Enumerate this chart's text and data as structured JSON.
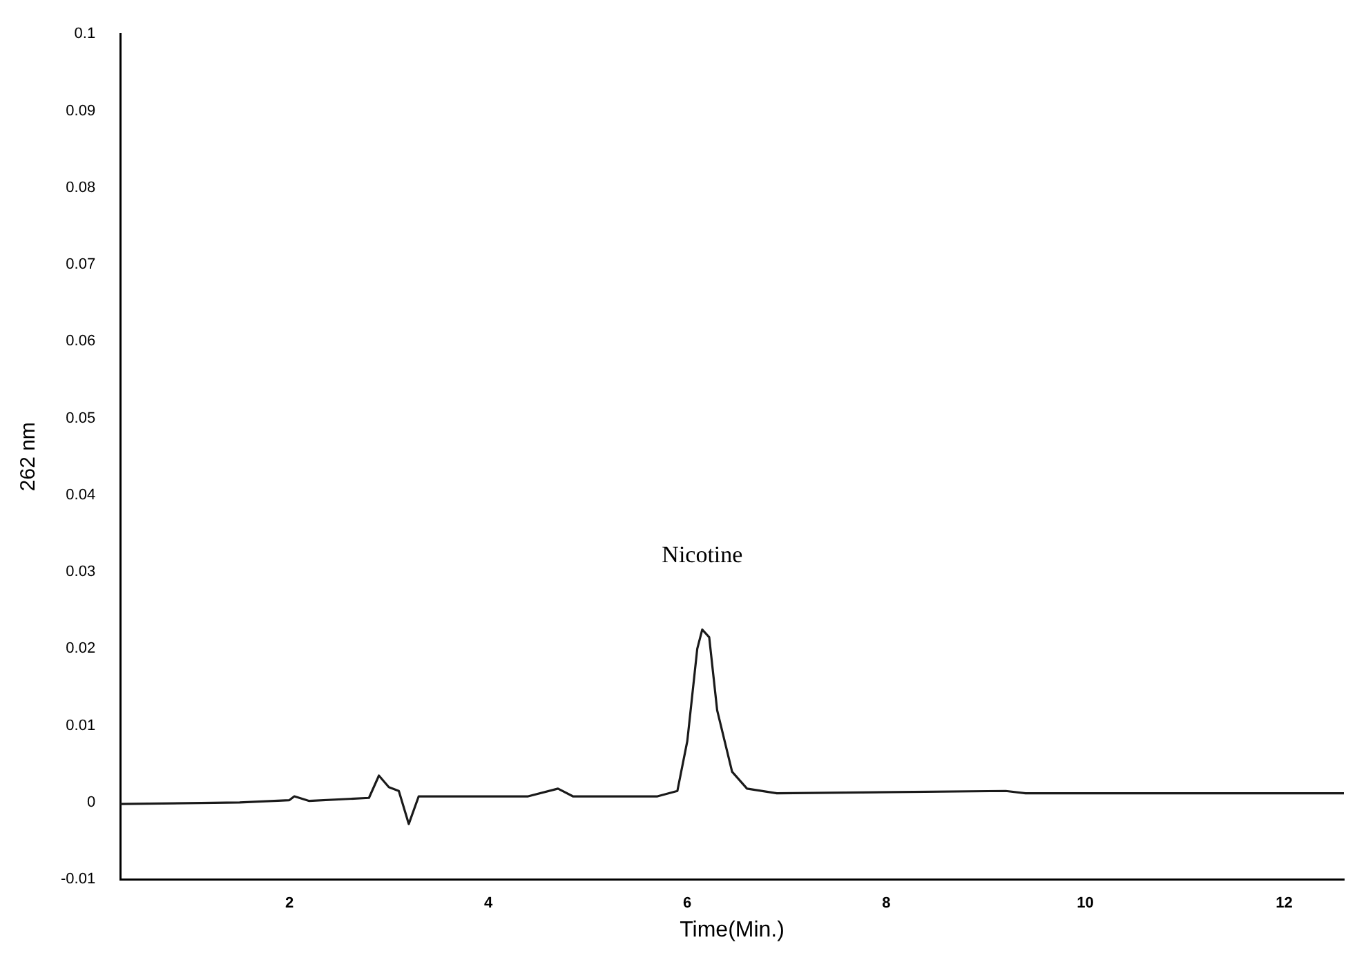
{
  "chart_data": {
    "type": "line",
    "xlabel": "Time(Min.)",
    "ylabel": "262 nm",
    "x": [
      0.3,
      1.5,
      2.0,
      2.05,
      2.2,
      2.8,
      2.9,
      3.0,
      3.1,
      3.2,
      3.3,
      3.5,
      4.4,
      4.7,
      4.85,
      5.7,
      5.9,
      6.0,
      6.1,
      6.15,
      6.22,
      6.3,
      6.45,
      6.6,
      6.9,
      9.2,
      9.4,
      12.6
    ],
    "series": [
      {
        "color": "#1a1a1a",
        "values": [
          -0.0002,
          0.0,
          0.0003,
          0.0008,
          0.0002,
          0.0006,
          0.0035,
          0.002,
          0.0015,
          -0.0028,
          0.0008,
          0.0008,
          0.0008,
          0.0018,
          0.0008,
          0.0008,
          0.0015,
          0.008,
          0.02,
          0.0225,
          0.0215,
          0.012,
          0.004,
          0.0018,
          0.0012,
          0.0015,
          0.0012,
          0.0012
        ]
      }
    ],
    "xlim": [
      0.3,
      12.6
    ],
    "xticks": [
      2,
      4,
      6,
      8,
      10,
      12
    ],
    "ylim": [
      -0.01,
      0.1
    ],
    "yticks": [
      -0.01,
      0,
      0.01,
      0.02,
      0.03,
      0.04,
      0.05,
      0.06,
      0.07,
      0.08,
      0.09,
      0.1
    ],
    "annotations": [
      "Nicotine"
    ],
    "grid": false,
    "legend": false,
    "marker": "none",
    "line_style": "solid"
  }
}
